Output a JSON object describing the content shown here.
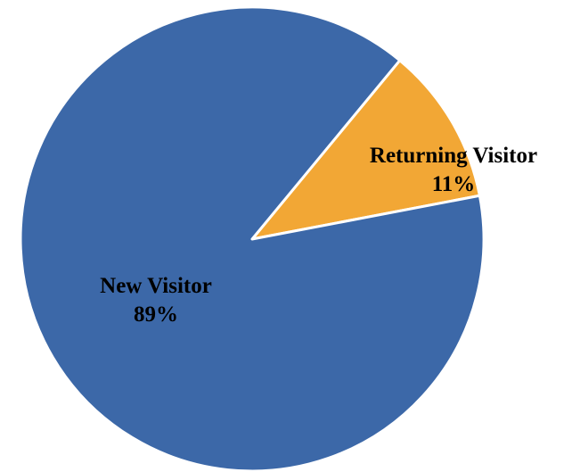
{
  "colors": {
    "new_visitor": "#3C68A8",
    "returning_visitor": "#F2A735",
    "slice_border": "#ffffff",
    "label_text": "#000000"
  },
  "chart_data": {
    "type": "pie",
    "title": "",
    "legend": "none",
    "start_angle_deg_clockwise_from_top": 39.6,
    "slices": [
      {
        "category": "Returning Visitor",
        "value": 11,
        "value_label": "11%",
        "color": "#F2A735"
      },
      {
        "category": "New Visitor",
        "value": 89,
        "value_label": "89%",
        "color": "#3C68A8"
      }
    ]
  }
}
